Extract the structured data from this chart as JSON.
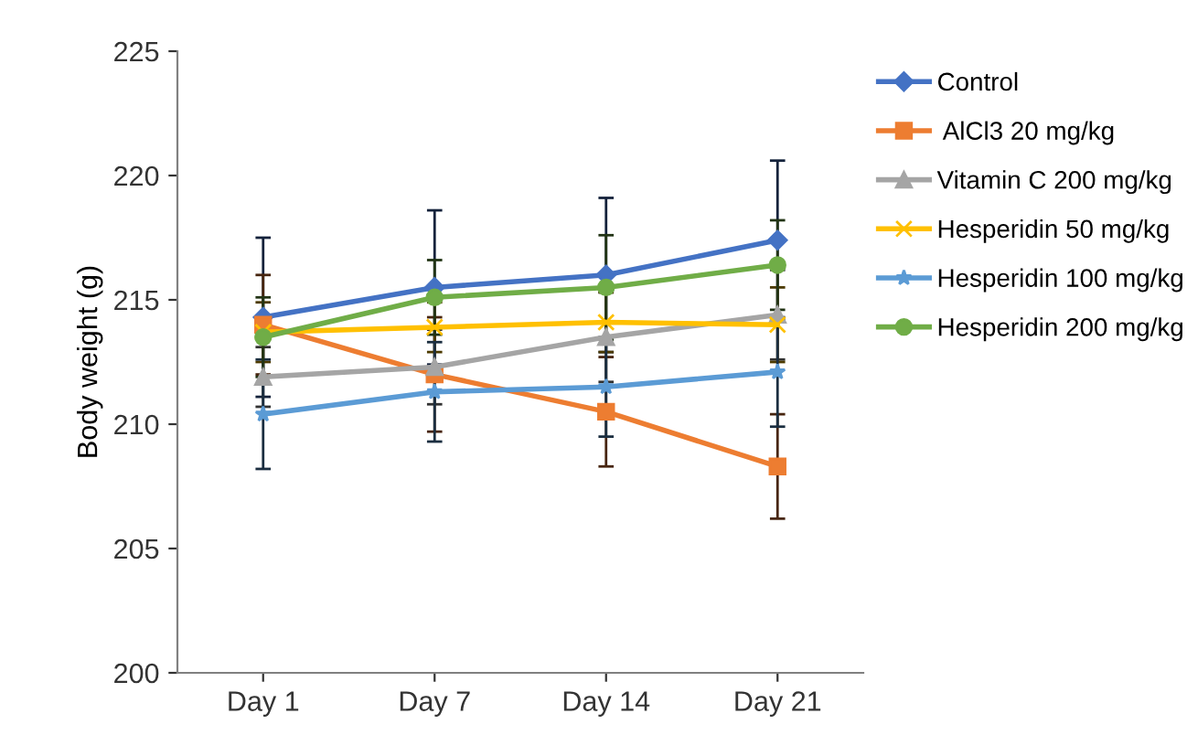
{
  "chart_data": {
    "type": "line",
    "ylabel": "Body weight (g)",
    "categories": [
      "Day 1",
      "Day 7",
      "Day 14",
      "Day 21"
    ],
    "ylim": [
      200,
      225
    ],
    "yticks": [
      200,
      205,
      210,
      215,
      220,
      225
    ],
    "grid": false,
    "legend": "right",
    "series": [
      {
        "name": "Control",
        "color": "#4472c4",
        "marker": "diamond",
        "values": [
          214.3,
          215.5,
          216.0,
          217.4
        ],
        "errors": [
          3.2,
          3.1,
          3.1,
          3.2
        ]
      },
      {
        "name": " AlCl3 20 mg/kg",
        "color": "#ed7d31",
        "marker": "square",
        "values": [
          214.0,
          212.0,
          210.5,
          208.3
        ],
        "errors": [
          2.0,
          2.3,
          2.2,
          2.1
        ]
      },
      {
        "name": "Vitamin C 200 mg/kg",
        "color": "#a5a5a5",
        "marker": "triangle",
        "values": [
          211.9,
          212.3,
          213.5,
          214.4
        ],
        "errors": [
          1.2,
          1.5,
          1.8,
          1.8
        ]
      },
      {
        "name": "Hesperidin 50 mg/kg",
        "color": "#ffc000",
        "marker": "cross",
        "values": [
          213.7,
          213.9,
          214.1,
          214.0
        ],
        "errors": [
          1.2,
          1.0,
          1.2,
          1.5
        ]
      },
      {
        "name": "Hesperidin 100 mg/kg",
        "color": "#5b9bd5",
        "marker": "star",
        "values": [
          210.4,
          211.3,
          211.5,
          212.1
        ],
        "errors": [
          2.2,
          2.0,
          2.0,
          2.2
        ]
      },
      {
        "name": "Hesperidin 200 mg/kg",
        "color": "#70ad47",
        "marker": "circle",
        "values": [
          213.5,
          215.1,
          215.5,
          216.4
        ],
        "errors": [
          1.6,
          1.5,
          2.1,
          1.8
        ]
      }
    ]
  }
}
